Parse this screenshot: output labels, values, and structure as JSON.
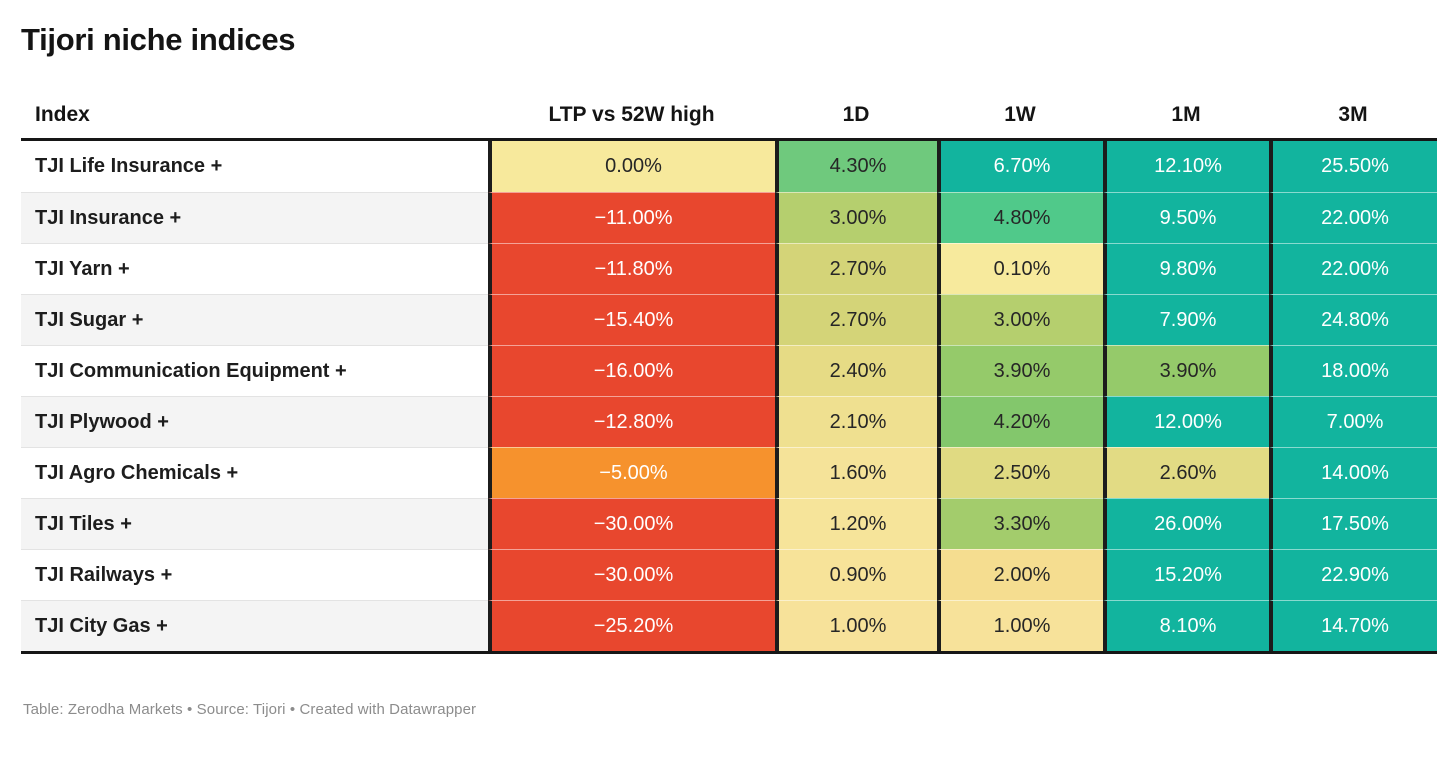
{
  "title": "Tijori niche indices",
  "footer": "Table: Zerodha Markets • Source: Tijori • Created with Datawrapper",
  "chart_data": {
    "type": "table",
    "title": "Tijori niche indices",
    "columns": [
      "Index",
      "LTP vs 52W high",
      "1D",
      "1W",
      "1M",
      "3M"
    ],
    "legend_note": "heatmap table: red = negative, yellow = near zero, teal = strong positive",
    "palette": {
      "strong_negative": "#e8472e",
      "mild_negative": "#f6922d",
      "near_zero": "#f7ea9d",
      "strong_positive": "#12b49e",
      "text_dark": "#262626",
      "text_light": "#ffffff"
    },
    "rows": [
      {
        "label": "TJI Life Insurance +",
        "cells": [
          {
            "value": "0.00%",
            "n": 0.0,
            "bg": "#f7e99c",
            "fg": "#262626"
          },
          {
            "value": "4.30%",
            "n": 4.3,
            "bg": "#6fc97d",
            "fg": "#262626"
          },
          {
            "value": "6.70%",
            "n": 6.7,
            "bg": "#12b49e",
            "fg": "#ffffff"
          },
          {
            "value": "12.10%",
            "n": 12.1,
            "bg": "#12b49e",
            "fg": "#ffffff"
          },
          {
            "value": "25.50%",
            "n": 25.5,
            "bg": "#12b49e",
            "fg": "#ffffff"
          }
        ]
      },
      {
        "label": "TJI Insurance +",
        "cells": [
          {
            "value": "−11.00%",
            "n": -11.0,
            "bg": "#e8472e",
            "fg": "#ffffff"
          },
          {
            "value": "3.00%",
            "n": 3.0,
            "bg": "#b5cf6e",
            "fg": "#262626"
          },
          {
            "value": "4.80%",
            "n": 4.8,
            "bg": "#50c98a",
            "fg": "#262626"
          },
          {
            "value": "9.50%",
            "n": 9.5,
            "bg": "#12b49e",
            "fg": "#ffffff"
          },
          {
            "value": "22.00%",
            "n": 22.0,
            "bg": "#12b49e",
            "fg": "#ffffff"
          }
        ]
      },
      {
        "label": "TJI Yarn +",
        "cells": [
          {
            "value": "−11.80%",
            "n": -11.8,
            "bg": "#e8472e",
            "fg": "#ffffff"
          },
          {
            "value": "2.70%",
            "n": 2.7,
            "bg": "#d4d478",
            "fg": "#262626"
          },
          {
            "value": "0.10%",
            "n": 0.1,
            "bg": "#f7ea9d",
            "fg": "#262626"
          },
          {
            "value": "9.80%",
            "n": 9.8,
            "bg": "#12b49e",
            "fg": "#ffffff"
          },
          {
            "value": "22.00%",
            "n": 22.0,
            "bg": "#12b49e",
            "fg": "#ffffff"
          }
        ]
      },
      {
        "label": "TJI Sugar +",
        "cells": [
          {
            "value": "−15.40%",
            "n": -15.4,
            "bg": "#e8472e",
            "fg": "#ffffff"
          },
          {
            "value": "2.70%",
            "n": 2.7,
            "bg": "#d4d478",
            "fg": "#262626"
          },
          {
            "value": "3.00%",
            "n": 3.0,
            "bg": "#b5cf6e",
            "fg": "#262626"
          },
          {
            "value": "7.90%",
            "n": 7.9,
            "bg": "#12b49e",
            "fg": "#ffffff"
          },
          {
            "value": "24.80%",
            "n": 24.8,
            "bg": "#12b49e",
            "fg": "#ffffff"
          }
        ]
      },
      {
        "label": "TJI Communication Equipment +",
        "cells": [
          {
            "value": "−16.00%",
            "n": -16.0,
            "bg": "#e8472e",
            "fg": "#ffffff"
          },
          {
            "value": "2.40%",
            "n": 2.4,
            "bg": "#e6db85",
            "fg": "#262626"
          },
          {
            "value": "3.90%",
            "n": 3.9,
            "bg": "#95ca6a",
            "fg": "#262626"
          },
          {
            "value": "3.90%",
            "n": 3.9,
            "bg": "#95ca6a",
            "fg": "#262626"
          },
          {
            "value": "18.00%",
            "n": 18.0,
            "bg": "#12b49e",
            "fg": "#ffffff"
          }
        ]
      },
      {
        "label": "TJI Plywood +",
        "cells": [
          {
            "value": "−12.80%",
            "n": -12.8,
            "bg": "#e8472e",
            "fg": "#ffffff"
          },
          {
            "value": "2.10%",
            "n": 2.1,
            "bg": "#efe090",
            "fg": "#262626"
          },
          {
            "value": "4.20%",
            "n": 4.2,
            "bg": "#83c76c",
            "fg": "#262626"
          },
          {
            "value": "12.00%",
            "n": 12.0,
            "bg": "#12b49e",
            "fg": "#ffffff"
          },
          {
            "value": "7.00%",
            "n": 7.0,
            "bg": "#12b49e",
            "fg": "#ffffff"
          }
        ]
      },
      {
        "label": "TJI Agro Chemicals +",
        "cells": [
          {
            "value": "−5.00%",
            "n": -5.0,
            "bg": "#f6922d",
            "fg": "#ffffff"
          },
          {
            "value": "1.60%",
            "n": 1.6,
            "bg": "#f5e399",
            "fg": "#262626"
          },
          {
            "value": "2.50%",
            "n": 2.5,
            "bg": "#e0da82",
            "fg": "#262626"
          },
          {
            "value": "2.60%",
            "n": 2.6,
            "bg": "#e2db84",
            "fg": "#262626"
          },
          {
            "value": "14.00%",
            "n": 14.0,
            "bg": "#12b49e",
            "fg": "#ffffff"
          }
        ]
      },
      {
        "label": "TJI Tiles +",
        "cells": [
          {
            "value": "−30.00%",
            "n": -30.0,
            "bg": "#e8472e",
            "fg": "#ffffff"
          },
          {
            "value": "1.20%",
            "n": 1.2,
            "bg": "#f6e49a",
            "fg": "#262626"
          },
          {
            "value": "3.30%",
            "n": 3.3,
            "bg": "#a3cc6c",
            "fg": "#262626"
          },
          {
            "value": "26.00%",
            "n": 26.0,
            "bg": "#12b49e",
            "fg": "#ffffff"
          },
          {
            "value": "17.50%",
            "n": 17.5,
            "bg": "#12b49e",
            "fg": "#ffffff"
          }
        ]
      },
      {
        "label": "TJI Railways +",
        "cells": [
          {
            "value": "−30.00%",
            "n": -30.0,
            "bg": "#e8472e",
            "fg": "#ffffff"
          },
          {
            "value": "0.90%",
            "n": 0.9,
            "bg": "#f7e399",
            "fg": "#262626"
          },
          {
            "value": "2.00%",
            "n": 2.0,
            "bg": "#f5dd90",
            "fg": "#262626"
          },
          {
            "value": "15.20%",
            "n": 15.2,
            "bg": "#12b49e",
            "fg": "#ffffff"
          },
          {
            "value": "22.90%",
            "n": 22.9,
            "bg": "#12b49e",
            "fg": "#ffffff"
          }
        ]
      },
      {
        "label": "TJI City Gas +",
        "cells": [
          {
            "value": "−25.20%",
            "n": -25.2,
            "bg": "#e8472e",
            "fg": "#ffffff"
          },
          {
            "value": "1.00%",
            "n": 1.0,
            "bg": "#f7e29a",
            "fg": "#262626"
          },
          {
            "value": "1.00%",
            "n": 1.0,
            "bg": "#f7e29a",
            "fg": "#262626"
          },
          {
            "value": "8.10%",
            "n": 8.1,
            "bg": "#12b49e",
            "fg": "#ffffff"
          },
          {
            "value": "14.70%",
            "n": 14.7,
            "bg": "#12b49e",
            "fg": "#ffffff"
          }
        ]
      }
    ]
  }
}
